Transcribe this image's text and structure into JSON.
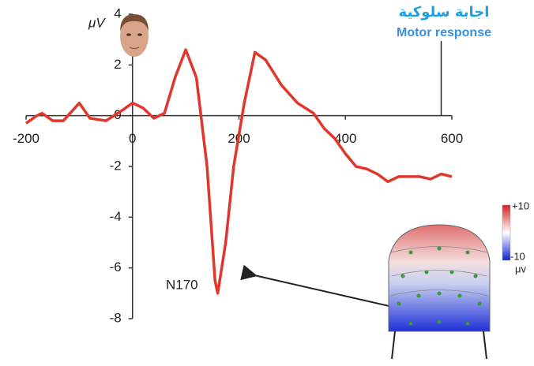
{
  "chart_data": {
    "type": "line",
    "ylabel": "μV",
    "x": [
      -200,
      -180,
      -170,
      -150,
      -130,
      -100,
      -80,
      -50,
      -20,
      0,
      20,
      40,
      60,
      80,
      100,
      120,
      140,
      155,
      160,
      175,
      190,
      210,
      230,
      250,
      280,
      310,
      340,
      360,
      380,
      400,
      420,
      440,
      460,
      480,
      500,
      520,
      540,
      560,
      580,
      600
    ],
    "values": [
      -0.3,
      0.0,
      0.1,
      -0.2,
      -0.2,
      0.5,
      -0.1,
      -0.2,
      0.2,
      0.5,
      0.3,
      -0.1,
      0.1,
      1.5,
      2.6,
      1.5,
      -2,
      -6.5,
      -7.0,
      -5,
      -2,
      0.5,
      2.5,
      2.2,
      1.2,
      0.5,
      0.1,
      -0.5,
      -0.9,
      -1.5,
      -2.0,
      -2.1,
      -2.3,
      -2.6,
      -2.4,
      -2.4,
      -2.4,
      -2.5,
      -2.3,
      -2.4
    ],
    "color": "#e0362c",
    "xlim": [
      -200,
      600
    ],
    "xticks": [
      -200,
      0,
      200,
      400,
      600
    ],
    "ylim": [
      -8,
      4
    ],
    "yticks": [
      -8,
      -6,
      -4,
      -2,
      0,
      2,
      4
    ],
    "annotations": {
      "peak_label": "N170",
      "response_label_ar": "اجابة سلوكية",
      "response_label_en": "Motor response",
      "response_time": 580
    },
    "colorbar": {
      "max_label": "+10",
      "min_label": "-10",
      "unit": "μv"
    }
  }
}
